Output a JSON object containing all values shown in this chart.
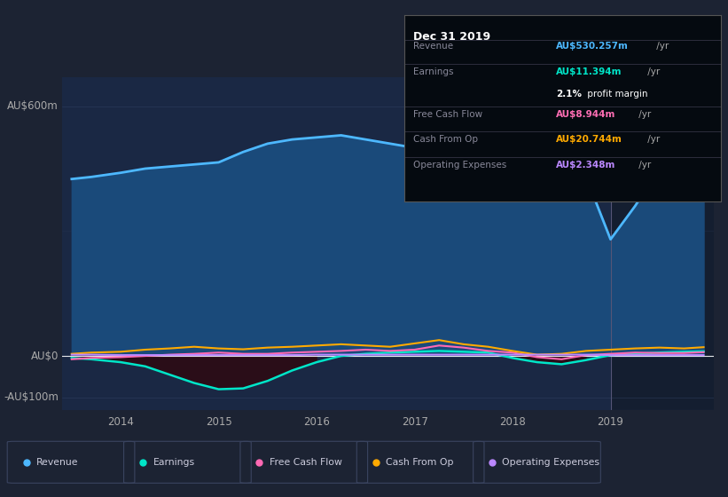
{
  "bg_color": "#1c2333",
  "plot_bg_color": "#1a2844",
  "ylabel_text": "AU$600m",
  "y0_text": "AU$0",
  "yneg_text": "-AU$100m",
  "xlabel_ticks": [
    "2014",
    "2015",
    "2016",
    "2017",
    "2018",
    "2019"
  ],
  "ylim": [
    -130,
    670
  ],
  "revenue_color": "#4db8ff",
  "earnings_color": "#00e5c8",
  "fcf_color": "#ff69b4",
  "cashfromop_color": "#ffaa00",
  "opex_color": "#bb88ff",
  "revenue_fill_color": "#1a4a7a",
  "shaded_region_color": "#141e30",
  "revenue_x": [
    2013.5,
    2013.7,
    2014.0,
    2014.25,
    2014.5,
    2014.75,
    2015.0,
    2015.25,
    2015.5,
    2015.75,
    2016.0,
    2016.25,
    2016.5,
    2016.75,
    2017.0,
    2017.25,
    2017.5,
    2017.75,
    2018.0,
    2018.25,
    2018.5,
    2018.75,
    2019.0,
    2019.25,
    2019.5,
    2019.75,
    2019.95
  ],
  "revenue_y": [
    425,
    430,
    440,
    450,
    455,
    460,
    465,
    490,
    510,
    520,
    525,
    530,
    520,
    510,
    500,
    495,
    490,
    495,
    505,
    525,
    540,
    430,
    280,
    360,
    450,
    510,
    530
  ],
  "earnings_x": [
    2013.5,
    2013.7,
    2014.0,
    2014.25,
    2014.5,
    2014.75,
    2015.0,
    2015.25,
    2015.5,
    2015.75,
    2016.0,
    2016.25,
    2016.5,
    2016.75,
    2017.0,
    2017.25,
    2017.5,
    2017.75,
    2018.0,
    2018.25,
    2018.5,
    2018.75,
    2019.0,
    2019.25,
    2019.5,
    2019.75,
    2019.95
  ],
  "earnings_y": [
    -5,
    -8,
    -15,
    -25,
    -45,
    -65,
    -80,
    -78,
    -60,
    -35,
    -15,
    0,
    5,
    8,
    10,
    12,
    10,
    8,
    -5,
    -15,
    -20,
    -10,
    2,
    5,
    8,
    10,
    11
  ],
  "fcf_x": [
    2013.5,
    2013.7,
    2014.0,
    2014.25,
    2014.5,
    2014.75,
    2015.0,
    2015.25,
    2015.5,
    2015.75,
    2016.0,
    2016.25,
    2016.5,
    2016.75,
    2017.0,
    2017.25,
    2017.5,
    2017.75,
    2018.0,
    2018.25,
    2018.5,
    2018.75,
    2019.0,
    2019.25,
    2019.5,
    2019.75,
    2019.95
  ],
  "fcf_y": [
    -8,
    -5,
    -3,
    0,
    3,
    5,
    8,
    5,
    5,
    8,
    10,
    12,
    15,
    12,
    15,
    25,
    20,
    12,
    8,
    -3,
    -8,
    2,
    5,
    8,
    7,
    7,
    9
  ],
  "cashfromop_x": [
    2013.5,
    2013.7,
    2014.0,
    2014.25,
    2014.5,
    2014.75,
    2015.0,
    2015.25,
    2015.5,
    2015.75,
    2016.0,
    2016.25,
    2016.5,
    2016.75,
    2017.0,
    2017.25,
    2017.5,
    2017.75,
    2018.0,
    2018.25,
    2018.5,
    2018.75,
    2019.0,
    2019.25,
    2019.5,
    2019.75,
    2019.95
  ],
  "cashfromop_y": [
    5,
    8,
    10,
    15,
    18,
    22,
    18,
    16,
    20,
    22,
    25,
    28,
    25,
    22,
    30,
    38,
    28,
    22,
    12,
    3,
    5,
    12,
    15,
    18,
    20,
    18,
    21
  ],
  "opex_x": [
    2013.5,
    2013.7,
    2014.0,
    2014.25,
    2014.5,
    2014.75,
    2015.0,
    2015.25,
    2015.5,
    2015.75,
    2016.0,
    2016.25,
    2016.5,
    2016.75,
    2017.0,
    2017.25,
    2017.5,
    2017.75,
    2018.0,
    2018.25,
    2018.5,
    2018.75,
    2019.0,
    2019.25,
    2019.5,
    2019.75,
    2019.95
  ],
  "opex_y": [
    3,
    3,
    2,
    2,
    2,
    2,
    2,
    2,
    2,
    2,
    3,
    3,
    3,
    3,
    3,
    3,
    3,
    3,
    3,
    3,
    3,
    3,
    2,
    2,
    2,
    2,
    2
  ],
  "vline_x": 2019.0,
  "info_box_title": "Dec 31 2019",
  "info_rows": [
    {
      "label": "Revenue",
      "value": "AU$530.257m",
      "suffix": " /yr",
      "color": "#4db8ff"
    },
    {
      "label": "Earnings",
      "value": "AU$11.394m",
      "suffix": " /yr",
      "color": "#00e5c8"
    },
    {
      "label": "",
      "bold": "2.1%",
      "rest": " profit margin",
      "color": "#ffffff"
    },
    {
      "label": "Free Cash Flow",
      "value": "AU$8.944m",
      "suffix": " /yr",
      "color": "#ff6eb4"
    },
    {
      "label": "Cash From Op",
      "value": "AU$20.744m",
      "suffix": " /yr",
      "color": "#ffaa00"
    },
    {
      "label": "Operating Expenses",
      "value": "AU$2.348m",
      "suffix": " /yr",
      "color": "#bb88ff"
    }
  ],
  "legend_items": [
    {
      "label": "Revenue",
      "color": "#4db8ff"
    },
    {
      "label": "Earnings",
      "color": "#00e5c8"
    },
    {
      "label": "Free Cash Flow",
      "color": "#ff69b4"
    },
    {
      "label": "Cash From Op",
      "color": "#ffaa00"
    },
    {
      "label": "Operating Expenses",
      "color": "#bb88ff"
    }
  ]
}
